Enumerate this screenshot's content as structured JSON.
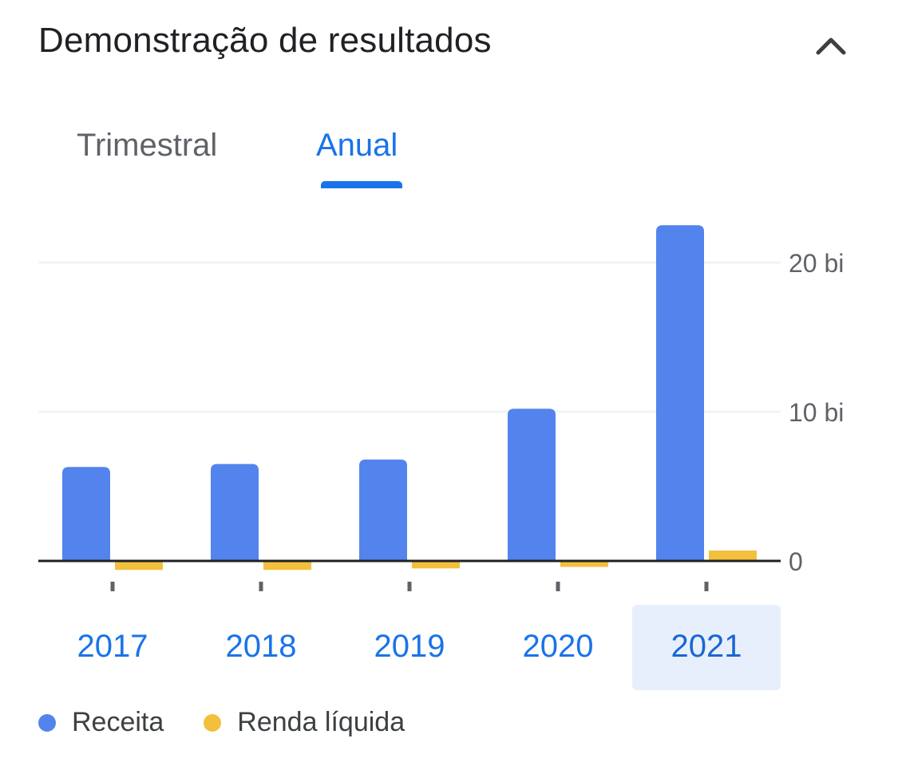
{
  "header": {
    "title": "Demonstração de resultados",
    "collapse_icon": "chevron-up-icon"
  },
  "tabs": [
    {
      "label": "Trimestral",
      "selected": false
    },
    {
      "label": "Anual",
      "selected": true
    }
  ],
  "colors": {
    "receita": "#5384ed",
    "renda_liquida": "#f2c03c",
    "accent": "#1a73e8",
    "selected_year_bg": "#e8effc",
    "gridline": "#f1f3f4",
    "baseline": "#202124"
  },
  "chart_data": {
    "type": "bar",
    "categories": [
      "2017",
      "2018",
      "2019",
      "2020",
      "2021"
    ],
    "selected_category": "2021",
    "series": [
      {
        "name": "Receita",
        "values": [
          6.3,
          6.5,
          6.8,
          10.2,
          22.5
        ]
      },
      {
        "name": "Renda líquida",
        "values": [
          -0.6,
          -0.6,
          -0.5,
          -0.4,
          0.7
        ]
      }
    ],
    "y_ticks": [
      {
        "value": 0,
        "label": "0"
      },
      {
        "value": 10,
        "label": "10 bi"
      },
      {
        "value": 20,
        "label": "20 bi"
      }
    ],
    "ylim": [
      -1.6,
      22.5
    ],
    "grid": true,
    "y_axis_position": "right",
    "legend_position": "bottom-left"
  }
}
